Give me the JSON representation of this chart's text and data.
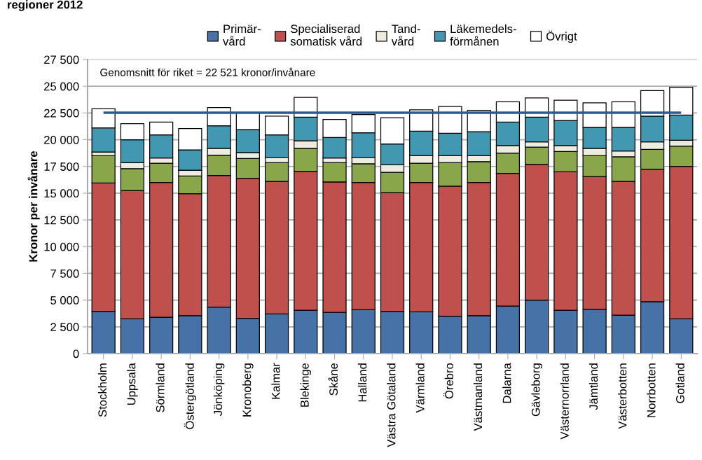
{
  "chart_data": {
    "type": "bar",
    "stacked": true,
    "title": "regioner 2012",
    "ylabel": "Kronor per invånare",
    "categories": [
      "Stockholm",
      "Uppsala",
      "Sörmland",
      "Östergötland",
      "Jönköping",
      "Kronoberg",
      "Kalmar",
      "Blekinge",
      "Skåne",
      "Halland",
      "Västra Götaland",
      "Värmland",
      "Örebro",
      "Västmanland",
      "Dalarna",
      "Gävleborg",
      "Västernorrland",
      "Jämtland",
      "Västerbotten",
      "Norrbotten",
      "Gotland"
    ],
    "series": [
      {
        "name": "Primär-\nvård",
        "color": "#4672a8",
        "values": [
          3950,
          3250,
          3400,
          3550,
          4350,
          3300,
          3700,
          4050,
          3850,
          4100,
          3950,
          3900,
          3500,
          3550,
          4450,
          5000,
          4050,
          4150,
          3600,
          4850,
          3250
        ]
      },
      {
        "name": "Specialiserad\nsomatisk vård",
        "color": "#c0504d",
        "values": [
          12000,
          12000,
          12600,
          11400,
          12300,
          13100,
          12400,
          13000,
          12200,
          11900,
          11100,
          12100,
          12150,
          12450,
          12400,
          12700,
          12950,
          12400,
          12500,
          12400,
          14250
        ]
      },
      {
        "color": "#8aa64b",
        "values": [
          2550,
          2050,
          1800,
          1650,
          1900,
          1850,
          1750,
          2150,
          1800,
          1750,
          1900,
          1800,
          2200,
          1950,
          1900,
          1600,
          1900,
          1950,
          2300,
          1850,
          1900
        ]
      },
      {
        "name": "Tand-\nvård",
        "color": "#eeece1",
        "values": [
          350,
          550,
          500,
          550,
          650,
          550,
          500,
          700,
          450,
          600,
          700,
          700,
          650,
          550,
          700,
          500,
          550,
          700,
          550,
          700,
          550
        ]
      },
      {
        "name": "Läkemedels-\nförmånen",
        "color": "#4198b0",
        "values": [
          2250,
          2150,
          2150,
          1900,
          2100,
          2150,
          2100,
          2200,
          1900,
          2300,
          1950,
          2300,
          2100,
          2250,
          2200,
          2300,
          2350,
          1950,
          2200,
          2400,
          2350
        ]
      },
      {
        "name": "Övrigt",
        "color": "#ffffff",
        "values": [
          1800,
          1500,
          1200,
          2000,
          1700,
          1550,
          1750,
          1850,
          1700,
          1700,
          2450,
          2000,
          2500,
          2000,
          1900,
          1800,
          1900,
          2300,
          2400,
          2400,
          2600
        ]
      }
    ],
    "ylim": [
      0,
      27500
    ],
    "yticks": [
      0,
      {
        "value": 2500,
        "label": "2 500"
      },
      {
        "value": 5000,
        "label": "5 000"
      },
      {
        "value": 7500,
        "label": "7 500"
      },
      {
        "value": 10000,
        "label": "10 000"
      },
      {
        "value": 12500,
        "label": "12 500"
      },
      {
        "value": 15000,
        "label": "15 000"
      },
      {
        "value": 17500,
        "label": "17 500"
      },
      {
        "value": 20000,
        "label": "20 000"
      },
      {
        "value": 22500,
        "label": "22 500"
      },
      {
        "value": 25000,
        "label": "25 000"
      },
      {
        "value": 27500,
        "label": "27 500"
      }
    ],
    "ref_lines": [
      {
        "axis": "y",
        "value": 22521,
        "color": "#2e5a8c"
      }
    ],
    "annotations": [
      "Genomsnitt för riket = 22 521 kronor/invånare"
    ],
    "grid": "y",
    "legend": "top"
  }
}
